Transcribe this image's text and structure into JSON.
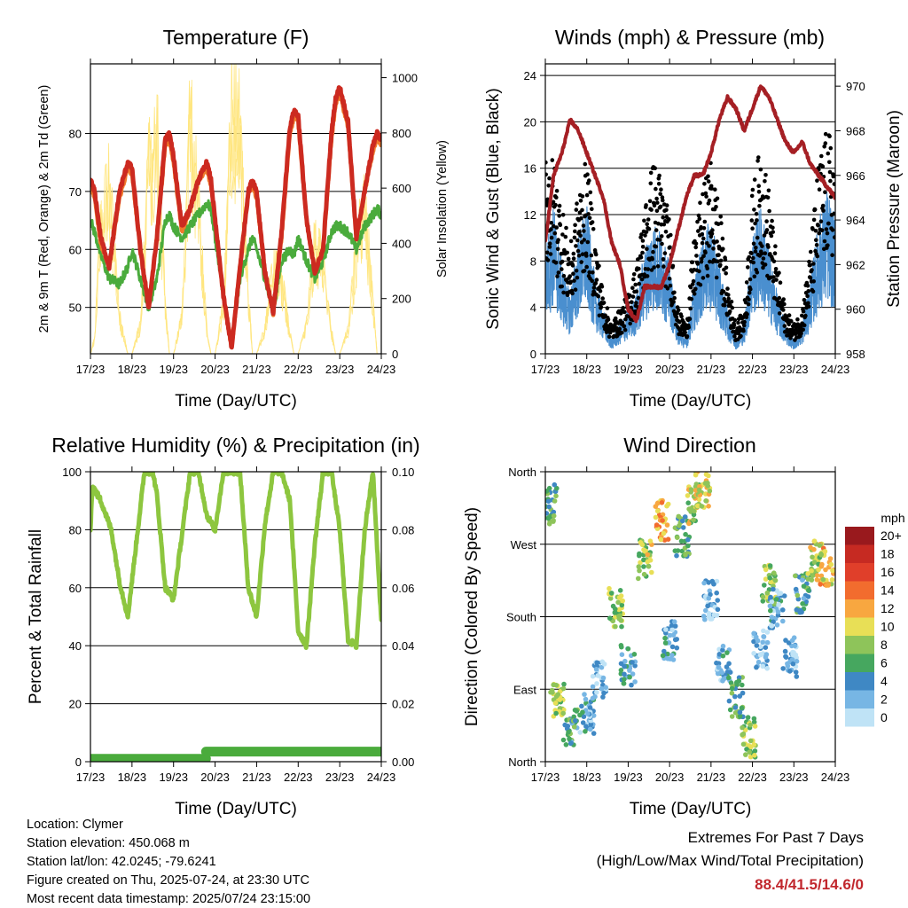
{
  "x_ticks": [
    "17/23",
    "18/23",
    "19/23",
    "20/23",
    "21/23",
    "22/23",
    "23/23",
    "24/23"
  ],
  "x_axis_label": "Time (Day/UTC)",
  "chart_data": [
    {
      "type": "line",
      "title": "Temperature (F)",
      "xlabel": "Time (Day/UTC)",
      "ylabel": "2m & 9m T (Red, Orange) & 2m Td (Green)",
      "ylabel_right": "Solar Insolation (Yellow)",
      "ylim": [
        42,
        92
      ],
      "ylim_right": [
        0,
        1050
      ],
      "yticks": [
        50,
        60,
        70,
        80
      ],
      "yticks_right": [
        0,
        200,
        400,
        600,
        800,
        1000
      ],
      "x": [
        0,
        0.1,
        0.25,
        0.45,
        0.7,
        0.9,
        1.0,
        1.2,
        1.4,
        1.6,
        1.8,
        1.9,
        2.0,
        2.2,
        2.4,
        2.6,
        2.8,
        2.9,
        3.0,
        3.2,
        3.4,
        3.6,
        3.8,
        3.9,
        4.0,
        4.2,
        4.4,
        4.6,
        4.8,
        4.9,
        5.0,
        5.2,
        5.4,
        5.6,
        5.8,
        5.9,
        6.0,
        6.2,
        6.4,
        6.6,
        6.8,
        6.9,
        7.0
      ],
      "series": [
        {
          "name": "2m T",
          "color": "#cc2a20",
          "values": [
            72,
            70,
            62,
            57,
            70,
            75,
            74,
            60,
            50,
            62,
            79,
            80,
            76,
            64,
            67,
            72,
            75,
            72,
            65,
            52,
            43,
            57,
            70,
            72,
            70,
            56,
            49,
            63,
            81,
            84,
            83,
            65,
            56,
            60,
            80,
            86,
            88,
            82,
            62,
            70,
            78,
            80,
            79
          ]
        },
        {
          "name": "9m T",
          "color": "#f07a2c",
          "values": [
            71,
            69,
            61,
            57,
            69,
            74,
            73,
            60,
            50,
            62,
            78,
            79,
            75,
            63,
            67,
            72,
            74,
            71,
            65,
            52,
            43,
            57,
            70,
            71,
            69,
            56,
            49,
            62,
            80,
            83,
            82,
            65,
            56,
            60,
            79,
            85,
            87,
            81,
            62,
            70,
            77,
            79,
            78
          ]
        },
        {
          "name": "2m Td",
          "color": "#4aab3c",
          "values": [
            65,
            63,
            59,
            55,
            54,
            57,
            60,
            55,
            50,
            55,
            65,
            66,
            64,
            62,
            64,
            66,
            68,
            67,
            62,
            52,
            43,
            55,
            60,
            62,
            60,
            55,
            49,
            58,
            60,
            59,
            62,
            58,
            55,
            58,
            63,
            64,
            64,
            63,
            60,
            64,
            66,
            67,
            66
          ]
        },
        {
          "name": "Solar Insolation",
          "color": "#ffe680",
          "values": [
            0,
            60,
            560,
            700,
            150,
            0,
            0,
            120,
            780,
            900,
            200,
            0,
            0,
            150,
            940,
            600,
            100,
            0,
            0,
            200,
            1000,
            900,
            250,
            0,
            0,
            100,
            350,
            300,
            80,
            0,
            0,
            120,
            450,
            380,
            90,
            0,
            0,
            100,
            420,
            600,
            200,
            0,
            0
          ]
        }
      ]
    },
    {
      "type": "scatter",
      "title": "Winds (mph) & Pressure (mb)",
      "xlabel": "Time (Day/UTC)",
      "ylabel": "Sonic Wind & Gust (Blue, Black)",
      "ylabel_right": "Station Pressure (Maroon)",
      "ylim": [
        0,
        25
      ],
      "ylim_right": [
        958,
        971
      ],
      "yticks": [
        0,
        4,
        8,
        12,
        16,
        20,
        24
      ],
      "yticks_right": [
        958,
        960,
        962,
        964,
        966,
        968,
        970
      ],
      "x": [
        0,
        0.2,
        0.4,
        0.6,
        0.8,
        1.0,
        1.2,
        1.4,
        1.6,
        1.8,
        2.0,
        2.2,
        2.4,
        2.6,
        2.8,
        3.0,
        3.2,
        3.4,
        3.6,
        3.8,
        4.0,
        4.2,
        4.4,
        4.6,
        4.8,
        5.0,
        5.2,
        5.4,
        5.6,
        5.8,
        6.0,
        6.2,
        6.4,
        6.6,
        6.8,
        7.0
      ],
      "series": [
        {
          "name": "Sonic Wind",
          "color": "#4a8fcf",
          "values": [
            7,
            10,
            6,
            4,
            8,
            10,
            5,
            3,
            1,
            2,
            3,
            4,
            7,
            9,
            8,
            6,
            2,
            1,
            5,
            8,
            9,
            6,
            3,
            1,
            2,
            8,
            10,
            7,
            4,
            2,
            1,
            2,
            5,
            9,
            11,
            9
          ]
        },
        {
          "name": "Gust",
          "color": "#000000",
          "values": [
            14,
            13,
            10,
            7,
            11,
            13,
            8,
            4,
            2,
            3,
            4,
            6,
            10,
            13,
            12,
            9,
            3,
            2,
            8,
            11,
            13,
            10,
            5,
            2,
            3,
            11,
            14,
            11,
            6,
            3,
            2,
            3,
            7,
            13,
            15,
            14
          ]
        },
        {
          "name": "Station Pressure",
          "color": "#a51f24",
          "values": [
            963,
            966,
            967,
            968.5,
            968,
            967,
            966,
            965,
            963,
            962,
            960,
            959.5,
            961,
            961,
            961,
            962,
            963.5,
            965,
            966,
            966,
            967,
            968.5,
            969.5,
            969,
            968,
            969,
            970,
            969.5,
            968.5,
            967.5,
            967,
            967.5,
            966.5,
            966,
            965.5,
            965
          ]
        }
      ]
    },
    {
      "type": "line",
      "title": "Relative Humidity (%) & Precipitation (in)",
      "xlabel": "Time (Day/UTC)",
      "ylabel": "Percent & Total Rainfall",
      "ylim": [
        0,
        100
      ],
      "ylim_right": [
        0,
        0.1
      ],
      "yticks": [
        0,
        20,
        40,
        60,
        80,
        100
      ],
      "yticks_right": [
        0.0,
        0.02,
        0.04,
        0.06,
        0.08,
        0.1
      ],
      "yticks_right_labels": [
        "0.00",
        "0.02",
        "0.04",
        "0.06",
        "0.08",
        "0.10"
      ],
      "x": [
        0,
        0.05,
        0.25,
        0.5,
        0.7,
        0.9,
        1.1,
        1.3,
        1.5,
        1.6,
        1.8,
        2.0,
        2.2,
        2.4,
        2.6,
        2.8,
        3.0,
        3.2,
        3.4,
        3.6,
        3.8,
        4.0,
        4.2,
        4.4,
        4.6,
        4.8,
        5.0,
        5.2,
        5.4,
        5.6,
        5.8,
        6.0,
        6.2,
        6.4,
        6.6,
        6.8,
        7.0
      ],
      "series": [
        {
          "name": "Relative Humidity",
          "color": "#8dc63f",
          "values": [
            80,
            95,
            90,
            80,
            62,
            50,
            75,
            100,
            100,
            92,
            60,
            56,
            78,
            100,
            100,
            85,
            80,
            100,
            100,
            100,
            60,
            50,
            82,
            100,
            100,
            90,
            45,
            40,
            75,
            100,
            100,
            80,
            42,
            40,
            80,
            100,
            48
          ]
        },
        {
          "name": "Total Precipitation",
          "color": "#4aab3c",
          "values": [
            0,
            0,
            0,
            0,
            0,
            0,
            0,
            0,
            0,
            0,
            0,
            0,
            0,
            0,
            0,
            0,
            0,
            0,
            0,
            0,
            0,
            0,
            0,
            0,
            0,
            0,
            0,
            0,
            0,
            0,
            0,
            0,
            0,
            0,
            0,
            0,
            0
          ]
        }
      ]
    },
    {
      "type": "scatter",
      "title": "Wind Direction",
      "xlabel": "Time (Day/UTC)",
      "ylabel": "Direction (Colored By Speed)",
      "ylim": [
        0,
        360
      ],
      "yticks_labels": [
        "North",
        "East",
        "South",
        "West",
        "North"
      ],
      "colorbar_title": "mph",
      "colorbar_labels": [
        "20+",
        "18",
        "16",
        "14",
        "12",
        "10",
        "8",
        "6",
        "4",
        "2",
        "0"
      ],
      "colorbar_colors": [
        "#99191d",
        "#c62a22",
        "#e03f2a",
        "#f26c2e",
        "#f8a740",
        "#e8df56",
        "#8ec45a",
        "#46a75f",
        "#3f88c4",
        "#77b6e4",
        "#bfe3f6"
      ],
      "x": [
        0.1,
        0.3,
        0.6,
        1.0,
        1.3,
        1.7,
        2.0,
        2.4,
        2.8,
        3.0,
        3.3,
        3.6,
        3.8,
        4.0,
        4.3,
        4.6,
        4.9,
        5.2,
        5.4,
        5.6,
        5.9,
        6.2,
        6.5,
        6.8
      ],
      "series": [
        {
          "name": "Direction",
          "values": [
            320,
            80,
            40,
            60,
            100,
            190,
            120,
            250,
            300,
            150,
            280,
            320,
            340,
            200,
            120,
            80,
            30,
            140,
            220,
            190,
            130,
            210,
            250,
            240
          ]
        },
        {
          "name": "Speed",
          "values": [
            6,
            8,
            5,
            3,
            2,
            8,
            4,
            9,
            12,
            3,
            6,
            9,
            10,
            2,
            3,
            6,
            8,
            2,
            8,
            3,
            2,
            5,
            9,
            11
          ]
        }
      ]
    }
  ],
  "info": {
    "location": "Location: Clymer",
    "elevation": "Station elevation: 450.068 m",
    "latlon": "Station lat/lon: 42.0245; -79.6241",
    "created": "Figure created on Thu, 2025-07-24, at 23:30 UTC",
    "recent": "Most recent data timestamp: 2025/07/24 23:15:00"
  },
  "extremes": {
    "title": "Extremes For Past 7 Days",
    "subtitle": "(High/Low/Max Wind/Total Precipitation)",
    "values": "88.4/41.5/14.6/0"
  }
}
